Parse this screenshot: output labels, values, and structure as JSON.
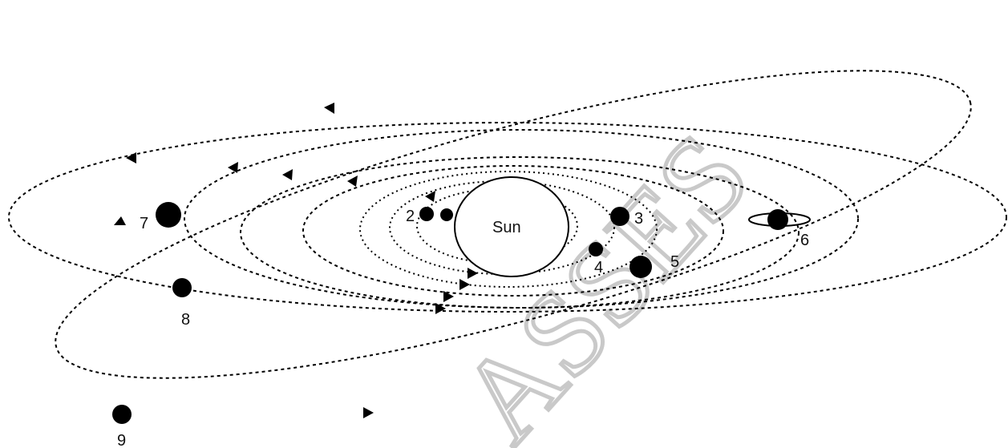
{
  "diagram": {
    "sun_label": "Sun",
    "planet_labels": [
      "2",
      "3",
      "4",
      "5",
      "6",
      "7",
      "8",
      "9"
    ],
    "watermark": "ASSES",
    "colors": {
      "ink": "#000000",
      "sun_fill": "#ffffff",
      "watermark": "#c9c9c9",
      "background": "#ffffff"
    }
  }
}
